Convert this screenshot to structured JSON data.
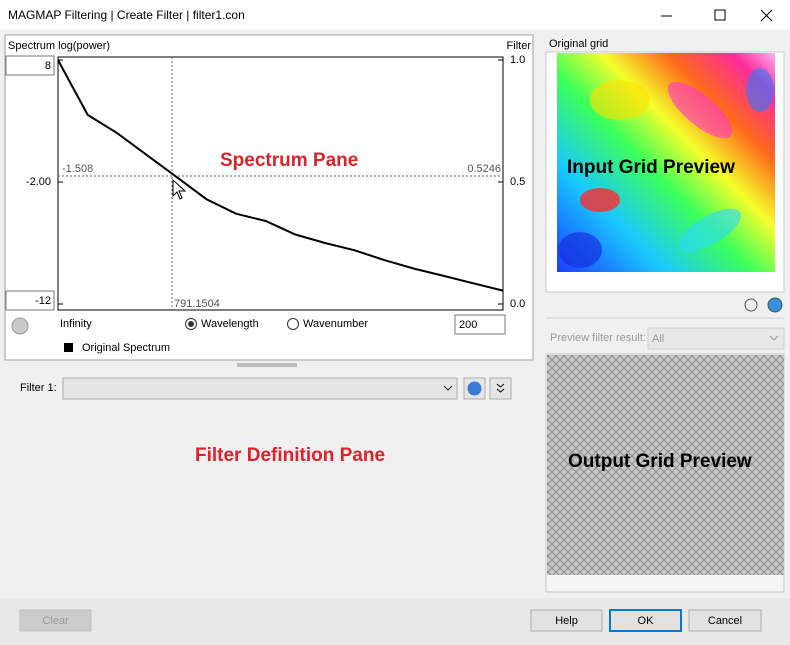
{
  "window": {
    "title": "MAGMAP Filtering | Create Filter | filter1.con"
  },
  "spectrum_pane": {
    "header": "Spectrum log(power)",
    "right_header": "Filter",
    "type": "line",
    "ylim": [
      -12,
      8
    ],
    "yticks": [
      8,
      {
        "value": -2,
        "label": "-2.00"
      },
      -12
    ],
    "y2lim": [
      0,
      1
    ],
    "y2ticks": [
      {
        "value": 1,
        "label": "1.0"
      },
      0.5,
      {
        "value": 0,
        "label": "0.0"
      }
    ],
    "series": [
      {
        "name": "Original Spectrum",
        "color": "#000000",
        "values": [
          8,
          3.5,
          2.0,
          0.2,
          -1.6,
          -3.4,
          -4.6,
          -5.2,
          -6.3,
          -7.0,
          -7.6,
          -8.4,
          -9.1,
          -9.7,
          -10.3,
          -10.9
        ]
      }
    ],
    "cursor": {
      "y_value": -1.508,
      "filter_value": 0.5246,
      "x_value": 791.1504
    },
    "x_start_label": "Infinity",
    "radio_options": [
      "Wavelength",
      "Wavenumber"
    ],
    "points_input": 200,
    "annotation": "Spectrum  Pane"
  },
  "filter_pane": {
    "filter_label": "Filter 1:",
    "annotation": "Filter Definition  Pane"
  },
  "preview_pane": {
    "input_title": "Original grid",
    "input_annotation": "Input Grid Preview",
    "preview_filter_label": "Preview filter result:",
    "preview_filter_value": "All",
    "output_annotation": "Output Grid Preview"
  },
  "buttons": [
    "Clear",
    "Help",
    "OK",
    "Cancel"
  ]
}
